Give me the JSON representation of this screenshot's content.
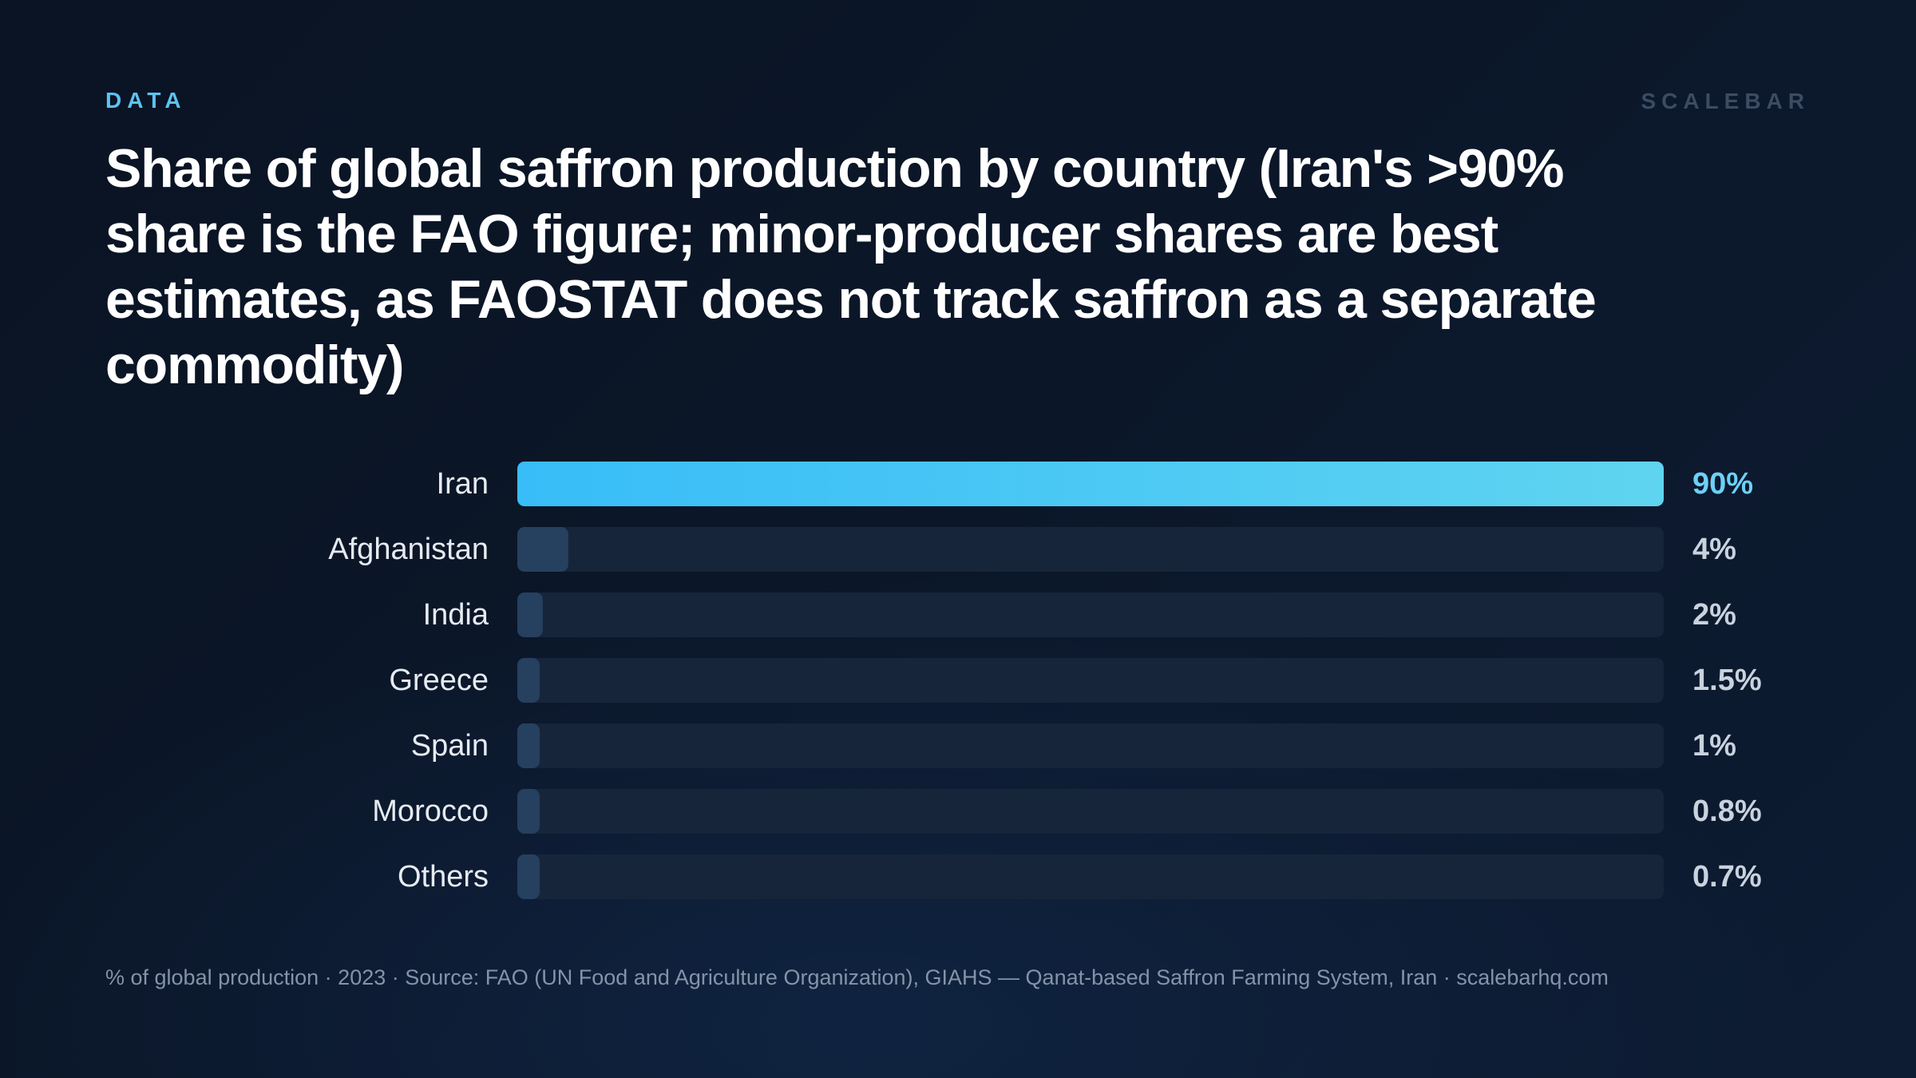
{
  "header": {
    "eyebrow": "DATA",
    "brand": "SCALEBAR",
    "title": "Share of global saffron production by country (Iran's >90% share is the FAO figure; minor-producer shares are best estimates, as FAOSTAT does not track saffron as a separate commodity)"
  },
  "footer": {
    "note": "% of global production · 2023 · Source: FAO (UN Food and Agriculture Organization), GIAHS — Qanat-based Saffron Farming System, Iran · scalebarhq.com"
  },
  "colors": {
    "accent_start": "#38bdf8",
    "accent_end": "#5fd4f0",
    "bar_muted": "#26405f",
    "track": "#17253a",
    "label": "#e6ebf2",
    "value_highlight": "#6dd0f7",
    "value": "#c9d2dd"
  },
  "chart_data": {
    "type": "bar",
    "orientation": "horizontal",
    "categories": [
      "Iran",
      "Afghanistan",
      "India",
      "Greece",
      "Spain",
      "Morocco",
      "Others"
    ],
    "values": [
      90,
      4,
      2,
      1.5,
      1,
      0.8,
      0.7
    ],
    "value_labels": [
      "90%",
      "4%",
      "2%",
      "1.5%",
      "1%",
      "0.8%",
      "0.7%"
    ],
    "xlim": [
      0,
      90
    ],
    "highlight": "Iran",
    "grid": false,
    "legend": "none"
  }
}
